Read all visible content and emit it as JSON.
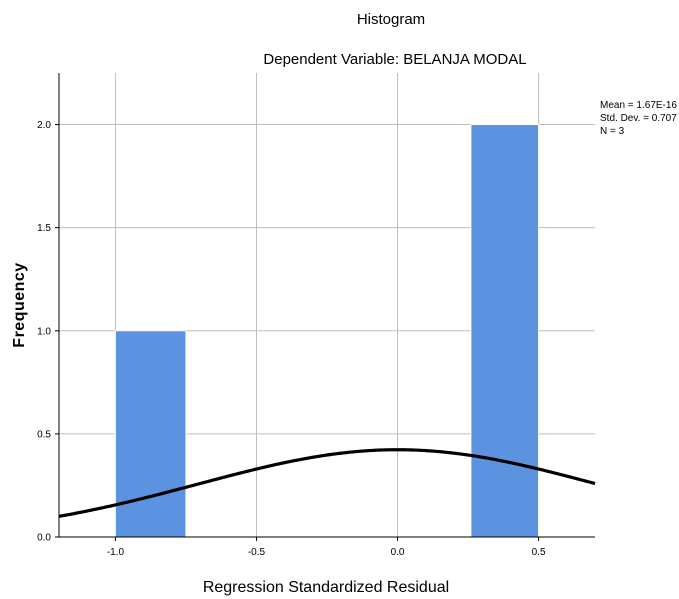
{
  "chart_data": {
    "type": "bar",
    "title": "Histogram",
    "subtitle": "Dependent Variable: BELANJA MODAL",
    "xlabel": "Regression Standardized Residual",
    "ylabel": "Frequency",
    "xlim": [
      -1.2,
      0.7
    ],
    "ylim": [
      0,
      2.25
    ],
    "x_ticks": [
      -1.0,
      -0.5,
      0.0,
      0.5
    ],
    "x_tick_labels": [
      "-1.0",
      "-0.5",
      "0.0",
      "0.5"
    ],
    "y_ticks": [
      0,
      0.5,
      1.0,
      1.5,
      2.0
    ],
    "y_tick_labels": [
      "0.0",
      "0.5",
      "1.0",
      "1.5",
      "2.0"
    ],
    "bins": [
      {
        "x0": -1.0,
        "x1": -0.75,
        "value": 1
      },
      {
        "x0": 0.26,
        "x1": 0.5,
        "value": 2
      }
    ],
    "normal_curve": {
      "mean": 1.67e-16,
      "std": 0.707,
      "n": 3
    },
    "stats": [
      "Mean = 1.67E-16",
      "Std. Dev. = 0.707",
      "N = 3"
    ],
    "grid": true,
    "colors": {
      "bar": "#5b93e0",
      "bar_edge": "#ffffff",
      "curve": "#000000",
      "grid": "#bdbdbd",
      "axis": "#000000"
    }
  }
}
